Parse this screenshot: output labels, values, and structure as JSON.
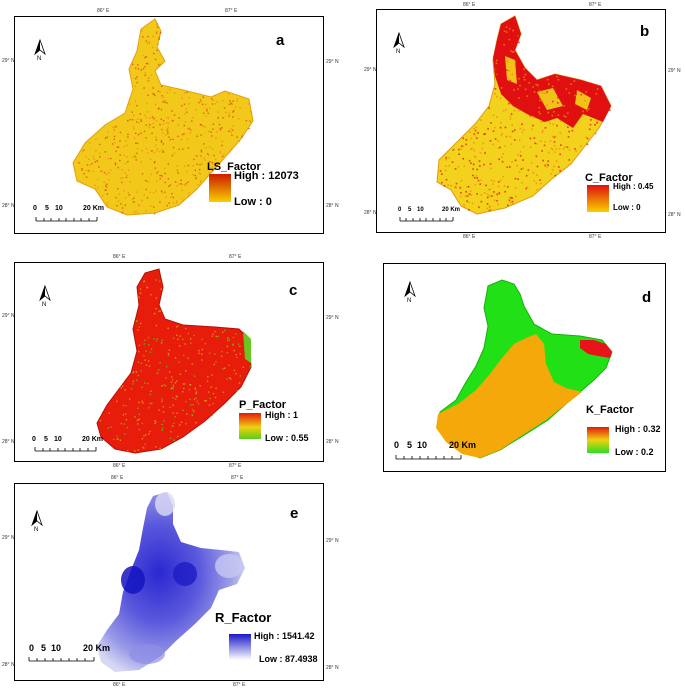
{
  "panels": {
    "a": {
      "letter": "a",
      "legend_title": "LS_Factor",
      "high": "High : 12073",
      "low": "Low : 0",
      "colors": [
        "#cc1a00",
        "#f7d000"
      ]
    },
    "b": {
      "letter": "b",
      "legend_title": "C_Factor",
      "high": "High : 0.45",
      "low": "Low : 0",
      "colors": [
        "#e01010",
        "#f7d000"
      ]
    },
    "c": {
      "letter": "c",
      "legend_title": "P_Factor",
      "high": "High : 1",
      "low": "Low : 0.55",
      "colors": [
        "#e21a0a",
        "#5ccc1a"
      ]
    },
    "d": {
      "letter": "d",
      "legend_title": "K_Factor",
      "high": "High : 0.32",
      "low": "Low : 0.2",
      "colors": [
        "#e21a0a",
        "#2adf22"
      ]
    },
    "e": {
      "letter": "e",
      "legend_title": "R_Factor",
      "high": "High : 1541.42",
      "low": "Low : 87.4938",
      "colors": [
        "#1a18c8",
        "#ffffff"
      ]
    }
  },
  "map_colors": {
    "ls_fill": "#f2c81a",
    "ls_speckle": "#d8420e",
    "c_base": "#f2d21c",
    "c_red": "#e01010",
    "c_orange": "#ef8a10",
    "p_red": "#e81c0a",
    "p_green": "#68c820",
    "k_orange": "#f5a80a",
    "k_green": "#21e016",
    "k_red": "#e8141a",
    "r_dark": "#2420cc",
    "r_mid": "#7070e0",
    "r_light": "#c8c8f2"
  },
  "coords": {
    "lon_86": "86° E",
    "lon_87": "87° E",
    "lat_28": "28° N",
    "lat_29": "29° N"
  },
  "scale_labels": [
    "0",
    "5",
    "10",
    "20 Km"
  ],
  "north_label": "N"
}
